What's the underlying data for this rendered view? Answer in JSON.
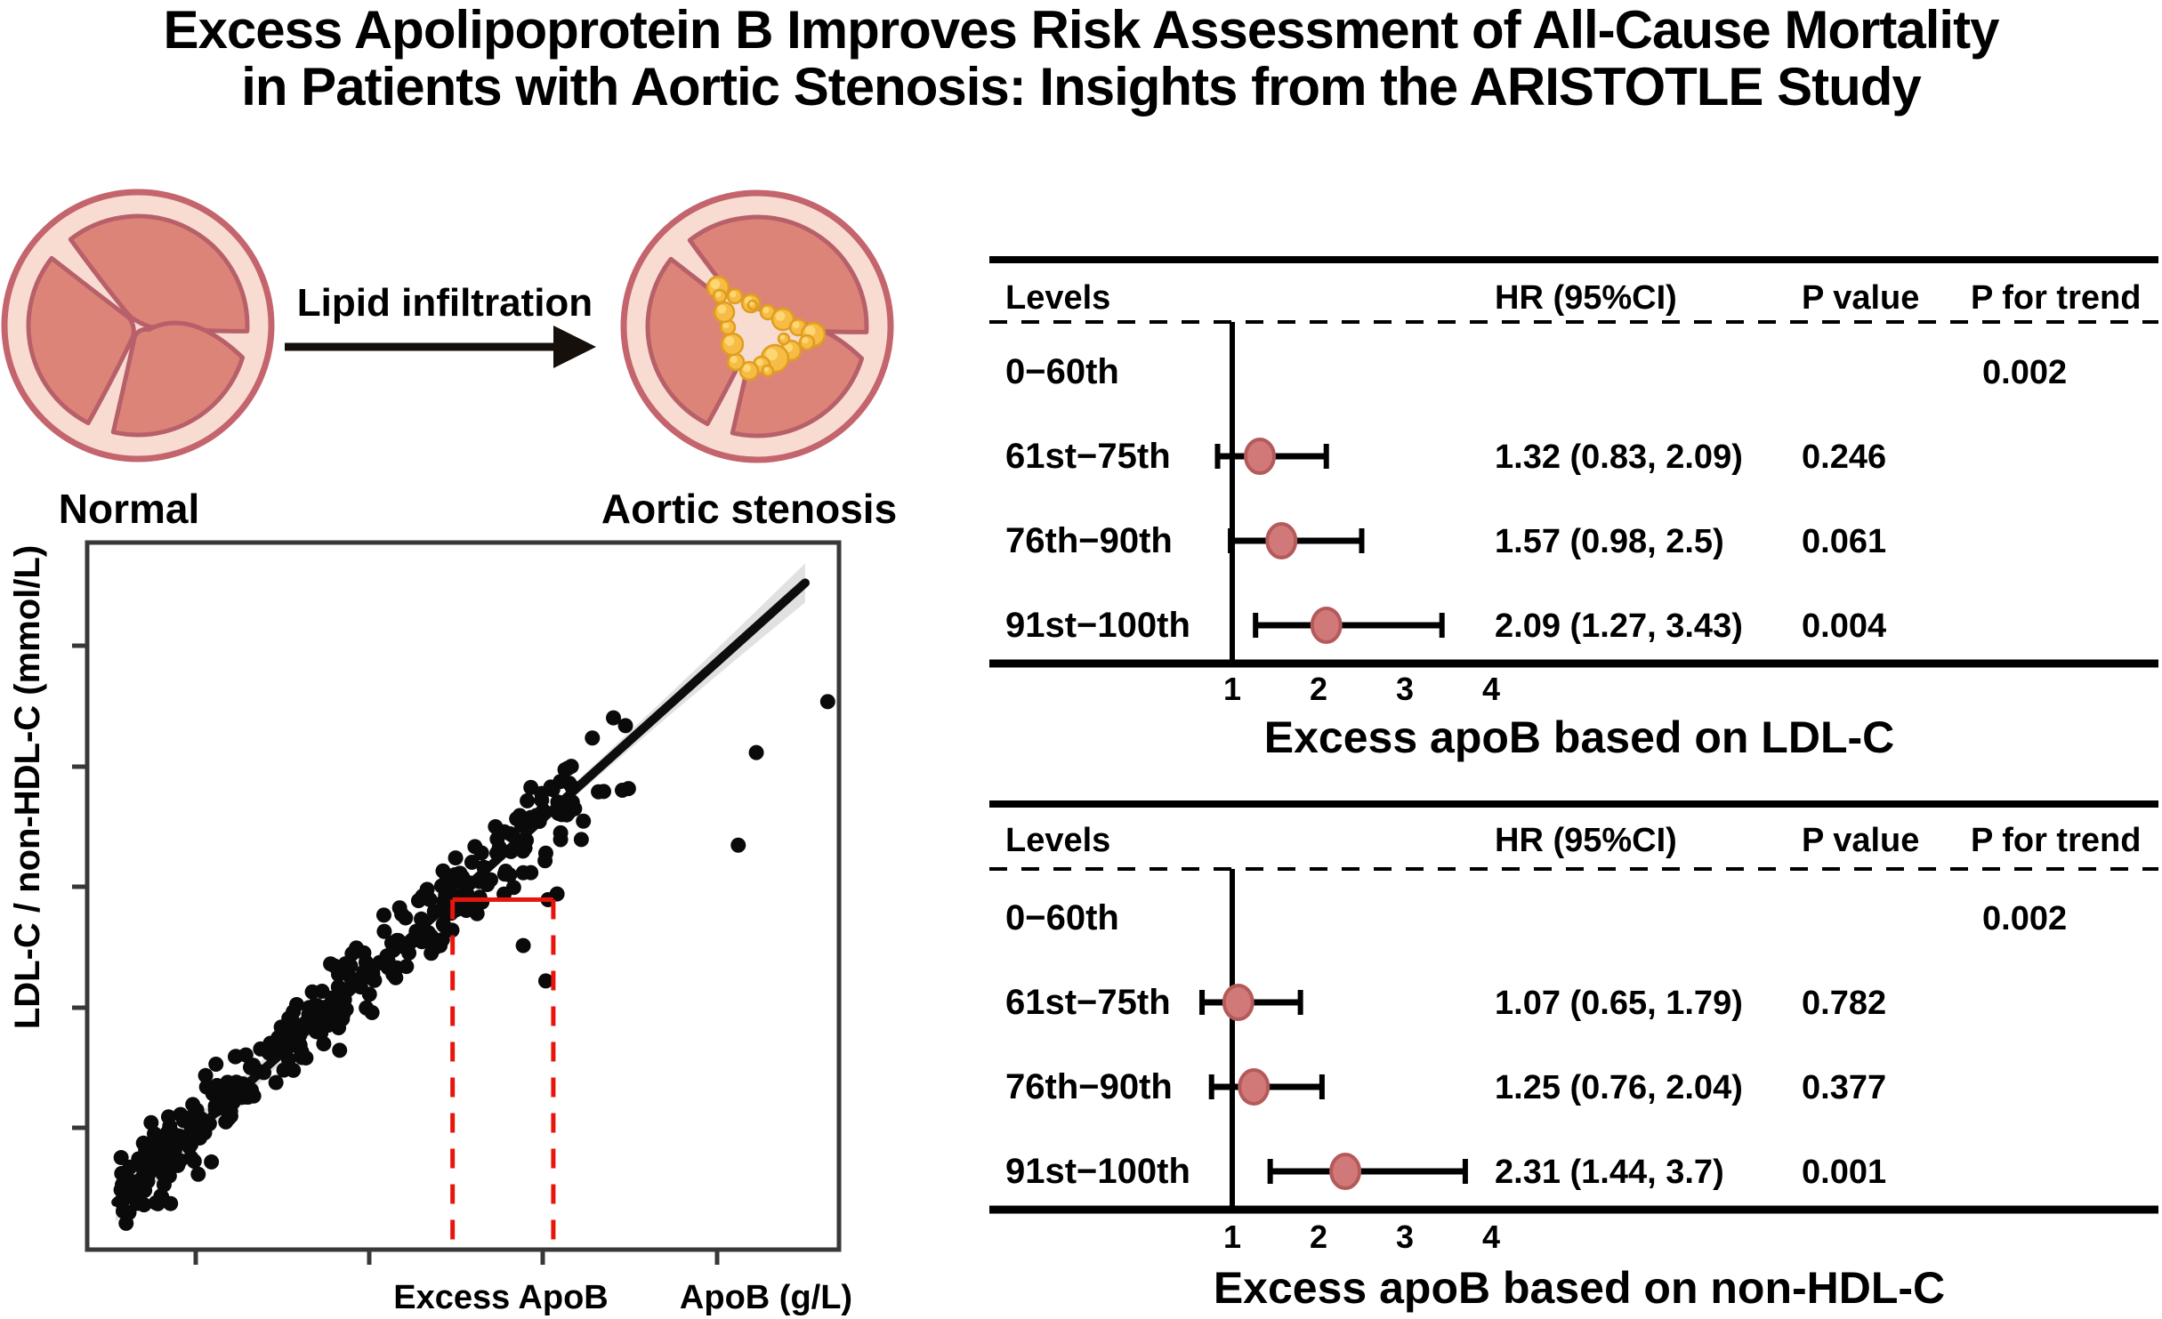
{
  "figure": {
    "title_line1": "Excess Apolipoprotein B Improves Risk Assessment of All-Cause Mortality",
    "title_line2": "in Patients with Aortic Stenosis: Insights from the ARISTOTLE Study"
  },
  "valve_diagram": {
    "normal_label": "Normal",
    "stenosis_label": "Aortic stenosis",
    "arrow_label": "Lipid infiltration",
    "colors": {
      "ring_fill": "#f8dcd2",
      "ring_stroke": "#c4646c",
      "leaflet_fill": "#dd8478",
      "leaflet_stroke": "#b8606a",
      "lipid_fill": "#f6bc45",
      "lipid_stroke": "#e09d1e",
      "lipid_highlight": "#ffd878"
    }
  },
  "chart_data": [
    {
      "type": "scatter",
      "title": "",
      "xlabel": "ApoB (g/L)",
      "ylabel": "LDL-C / non-HDL-C (mmol/L)",
      "annotation_label": "Excess ApoB",
      "axes": {
        "x_ticks_unlabeled": 4,
        "y_ticks_unlabeled": 5,
        "grid": false
      },
      "point_color": "#0a0a0a",
      "line_color": "#0d0d0d",
      "band_color": "#dcdcdc",
      "regression_line": {
        "x1": 0.038,
        "y1": 0.067,
        "x2": 0.955,
        "y2": 0.943
      },
      "excess_apob_annotation": {
        "expected_x": 0.486,
        "observed_x": 0.62,
        "color": "#e8150c"
      },
      "cloud": {
        "seed": 7,
        "n_core": 330,
        "n_tail": 26,
        "x_min": 0.045,
        "x_span": 0.6,
        "noise_sd": 0.055,
        "tail_noise_sd": 0.07
      },
      "outlier_points": [
        [
          0.716,
          0.741
        ],
        [
          0.7,
          0.752
        ],
        [
          0.72,
          0.652
        ],
        [
          0.687,
          0.648
        ],
        [
          0.89,
          0.703
        ],
        [
          0.985,
          0.775
        ],
        [
          0.866,
          0.572
        ],
        [
          0.609,
          0.55
        ],
        [
          0.613,
          0.495
        ],
        [
          0.49,
          0.554
        ],
        [
          0.66,
          0.606
        ],
        [
          0.58,
          0.533
        ],
        [
          0.625,
          0.503
        ],
        [
          0.58,
          0.43
        ],
        [
          0.61,
          0.38
        ]
      ]
    },
    {
      "type": "forest",
      "title": "Excess apoB based on LDL-C",
      "columns": [
        "Levels",
        "HR (95%CI)",
        "P value",
        "P for trend"
      ],
      "x_ticks": [
        "1",
        "2",
        "3",
        "4"
      ],
      "ref_value": 1,
      "xlim": [
        1,
        4
      ],
      "marker_fill": "#d17878",
      "marker_stroke": "#b55a5a",
      "rows": [
        {
          "level": "0−60th",
          "hr_text": "",
          "p_value": "",
          "p_trend": "0.002",
          "hr": null,
          "lo": null,
          "hi": null
        },
        {
          "level": "61st−75th",
          "hr_text": "1.32 (0.83, 2.09)",
          "p_value": "0.246",
          "p_trend": "",
          "hr": 1.32,
          "lo": 0.83,
          "hi": 2.09
        },
        {
          "level": "76th−90th",
          "hr_text": "1.57 (0.98, 2.5)",
          "p_value": "0.061",
          "p_trend": "",
          "hr": 1.57,
          "lo": 0.98,
          "hi": 2.5
        },
        {
          "level": "91st−100th",
          "hr_text": "2.09 (1.27, 3.43)",
          "p_value": "0.004",
          "p_trend": "",
          "hr": 2.09,
          "lo": 1.27,
          "hi": 3.43
        }
      ]
    },
    {
      "type": "forest",
      "title": "Excess apoB based on non-HDL-C",
      "columns": [
        "Levels",
        "HR (95%CI)",
        "P value",
        "P for trend"
      ],
      "x_ticks": [
        "1",
        "2",
        "3",
        "4"
      ],
      "ref_value": 1,
      "xlim": [
        1,
        4
      ],
      "marker_fill": "#d17878",
      "marker_stroke": "#b55a5a",
      "rows": [
        {
          "level": "0−60th",
          "hr_text": "",
          "p_value": "",
          "p_trend": "0.002",
          "hr": null,
          "lo": null,
          "hi": null
        },
        {
          "level": "61st−75th",
          "hr_text": "1.07 (0.65, 1.79)",
          "p_value": "0.782",
          "p_trend": "",
          "hr": 1.07,
          "lo": 0.65,
          "hi": 1.79
        },
        {
          "level": "76th−90th",
          "hr_text": "1.25 (0.76, 2.04)",
          "p_value": "0.377",
          "p_trend": "",
          "hr": 1.25,
          "lo": 0.76,
          "hi": 2.04
        },
        {
          "level": "91st−100th",
          "hr_text": "2.31 (1.44, 3.7)",
          "p_value": "0.001",
          "p_trend": "",
          "hr": 2.31,
          "lo": 1.44,
          "hi": 3.7
        }
      ]
    }
  ]
}
